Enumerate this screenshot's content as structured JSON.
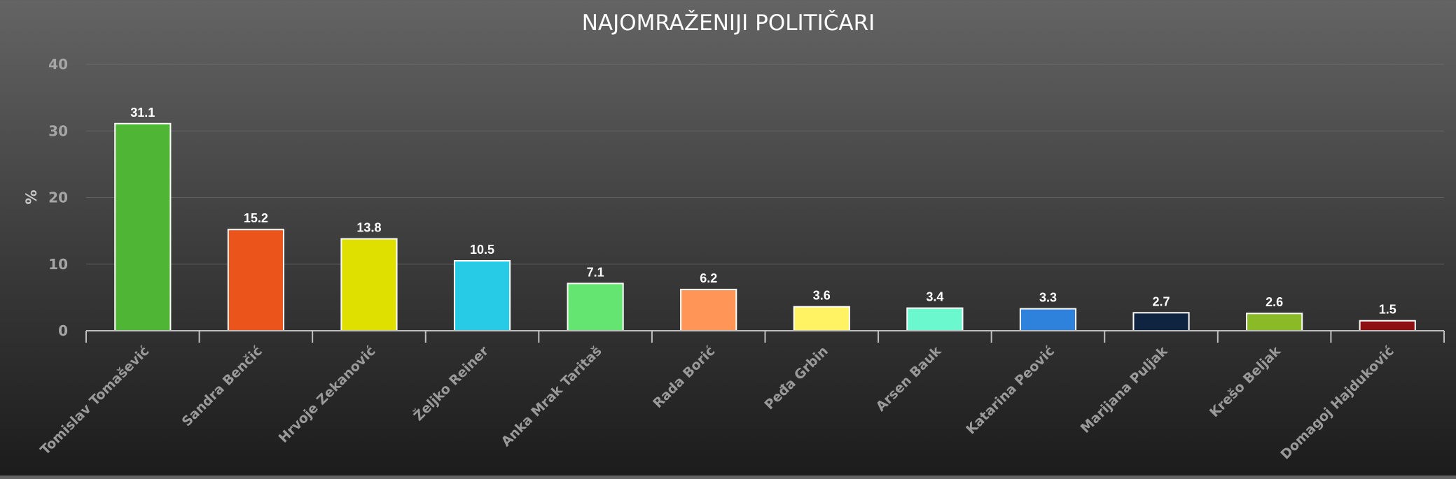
{
  "chart_data": {
    "type": "bar",
    "title": "NAJOMRAŽENIJI POLITIČARI",
    "xlabel": "",
    "ylabel": "%",
    "ylim": [
      0,
      40
    ],
    "yticks": [
      0,
      10,
      20,
      30,
      40
    ],
    "grid": true,
    "categories": [
      "Tomislav Tomašević",
      "Sandra Benčić",
      "Hrvoje Zekanović",
      "Željko Reiner",
      "Anka Mrak Taritaš",
      "Rada Borić",
      "Peđa Grbin",
      "Arsen Bauk",
      "Katarina Peović",
      "Marijana Puljak",
      "Krešo Beljak",
      "Domagoj Hajduković"
    ],
    "values": [
      31.1,
      15.2,
      13.8,
      10.5,
      7.1,
      6.2,
      3.6,
      3.4,
      3.3,
      2.7,
      2.6,
      1.5
    ],
    "colors": [
      "#4fb535",
      "#eb551c",
      "#dfe000",
      "#27cbe6",
      "#64e471",
      "#ff9556",
      "#fff263",
      "#6cf8cf",
      "#2e82dc",
      "#0f2440",
      "#8bba27",
      "#8e0f12"
    ]
  }
}
